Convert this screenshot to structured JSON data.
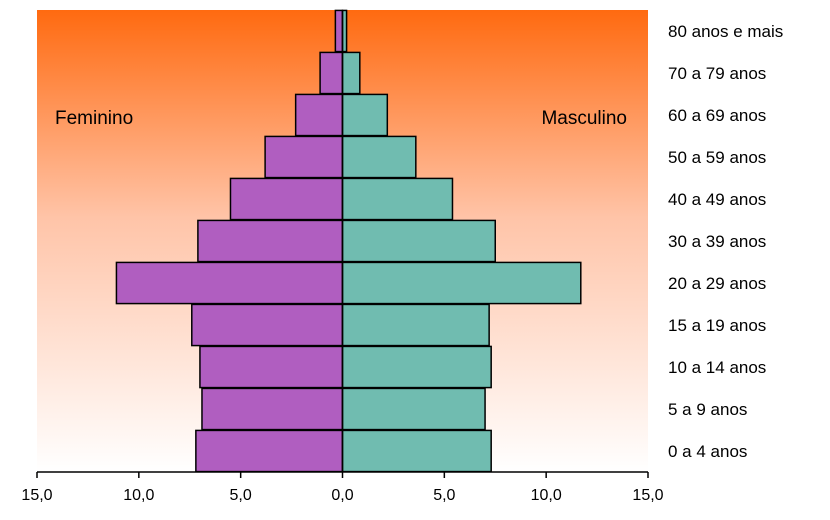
{
  "chart_data": {
    "type": "bar",
    "orientation": "horizontal",
    "layout": "population-pyramid",
    "categories": [
      "0 a 4 anos",
      "5 a 9 anos",
      "10 a 14 anos",
      "15 a 19 anos",
      "20 a 29 anos",
      "30 a 39 anos",
      "40 a 49 anos",
      "50 a 59 anos",
      "60 a 69 anos",
      "70 a 79 anos",
      "80 anos e mais"
    ],
    "series": [
      {
        "name": "Feminino",
        "side": "left",
        "color": "#b05ec0",
        "values": [
          7.2,
          6.9,
          7.0,
          7.4,
          11.1,
          7.1,
          5.5,
          3.8,
          2.3,
          1.1,
          0.35
        ]
      },
      {
        "name": "Masculino",
        "side": "right",
        "color": "#70bcb0",
        "values": [
          7.3,
          7.0,
          7.3,
          7.2,
          11.7,
          7.5,
          5.4,
          3.6,
          2.2,
          0.85,
          0.2
        ]
      }
    ],
    "xlim": [
      -15,
      15
    ],
    "xticks": [
      -15,
      -10,
      -5,
      0,
      5,
      10,
      15
    ],
    "xtick_labels": [
      "15,0",
      "10,0",
      "5,0",
      "0,0",
      "5,0",
      "10,0",
      "15,0"
    ],
    "title": "",
    "xlabel": "",
    "ylabel": "",
    "grid": false,
    "background_gradient": [
      "#ff6a10",
      "#ffffff"
    ]
  }
}
